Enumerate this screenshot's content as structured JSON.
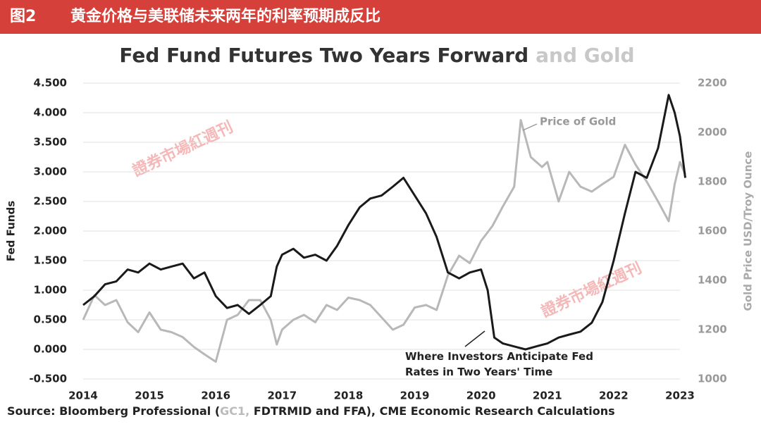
{
  "header": {
    "figure": "图2",
    "title": "黄金价格与美联储未来两年的利率预期成反比"
  },
  "chart_data": {
    "type": "line",
    "title": [
      "Fed Fund Futures Two Years Forward",
      "and Gold"
    ],
    "ylabel": "Fed Funds",
    "y2label": "Gold Price USD/Troy Ounce",
    "xlim": [
      2014,
      2023
    ],
    "xticks": [
      2014,
      2015,
      2016,
      2017,
      2018,
      2019,
      2020,
      2021,
      2022,
      2023
    ],
    "ylim": [
      -0.5,
      4.5
    ],
    "yticks": [
      {
        "value": -0.5,
        "label": "-0.500"
      },
      {
        "value": 0,
        "label": "0.000"
      },
      {
        "value": 0.5,
        "label": "0.500"
      },
      {
        "value": 1,
        "label": "1.000"
      },
      {
        "value": 1.5,
        "label": "1.500"
      },
      {
        "value": 2,
        "label": "2.000"
      },
      {
        "value": 2.5,
        "label": "2.500"
      },
      {
        "value": 3,
        "label": "3.000"
      },
      {
        "value": 3.5,
        "label": "3.500"
      },
      {
        "value": 4,
        "label": "4.000"
      },
      {
        "value": 4.5,
        "label": "4.500"
      }
    ],
    "y2lim": [
      1000,
      2200
    ],
    "y2ticks": [
      1000,
      1200,
      1400,
      1600,
      1800,
      2000,
      2200
    ],
    "grid": true,
    "series": [
      {
        "name": "Where Investors Anticipate Fed Rates in Two Years' Time",
        "color": "#1a1a1a",
        "axis": "y",
        "x": [
          2014.0,
          2014.17,
          2014.33,
          2014.5,
          2014.67,
          2014.83,
          2015.0,
          2015.17,
          2015.33,
          2015.5,
          2015.67,
          2015.83,
          2016.0,
          2016.17,
          2016.33,
          2016.5,
          2016.67,
          2016.83,
          2016.92,
          2017.0,
          2017.17,
          2017.33,
          2017.5,
          2017.67,
          2017.83,
          2018.0,
          2018.17,
          2018.33,
          2018.5,
          2018.67,
          2018.83,
          2019.0,
          2019.17,
          2019.33,
          2019.5,
          2019.67,
          2019.83,
          2020.0,
          2020.1,
          2020.2,
          2020.33,
          2020.5,
          2020.67,
          2020.83,
          2021.0,
          2021.17,
          2021.33,
          2021.5,
          2021.67,
          2021.83,
          2022.0,
          2022.17,
          2022.33,
          2022.5,
          2022.67,
          2022.83,
          2022.92,
          2023.0,
          2023.08
        ],
        "values": [
          0.75,
          0.9,
          1.1,
          1.15,
          1.35,
          1.3,
          1.45,
          1.35,
          1.4,
          1.45,
          1.2,
          1.3,
          0.9,
          0.7,
          0.75,
          0.6,
          0.75,
          0.9,
          1.4,
          1.6,
          1.7,
          1.55,
          1.6,
          1.5,
          1.75,
          2.1,
          2.4,
          2.55,
          2.6,
          2.75,
          2.9,
          2.6,
          2.3,
          1.9,
          1.3,
          1.2,
          1.3,
          1.35,
          1.0,
          0.2,
          0.1,
          0.05,
          0.0,
          0.05,
          0.1,
          0.2,
          0.25,
          0.3,
          0.45,
          0.8,
          1.5,
          2.3,
          3.0,
          2.9,
          3.4,
          4.3,
          4.0,
          3.6,
          2.9
        ]
      },
      {
        "name": "Price of Gold",
        "color": "#b8b8b8",
        "axis": "y2",
        "x": [
          2014.0,
          2014.17,
          2014.33,
          2014.5,
          2014.67,
          2014.83,
          2015.0,
          2015.17,
          2015.33,
          2015.5,
          2015.67,
          2015.83,
          2016.0,
          2016.17,
          2016.33,
          2016.5,
          2016.67,
          2016.83,
          2016.92,
          2017.0,
          2017.17,
          2017.33,
          2017.5,
          2017.67,
          2017.83,
          2018.0,
          2018.17,
          2018.33,
          2018.5,
          2018.67,
          2018.83,
          2019.0,
          2019.17,
          2019.33,
          2019.5,
          2019.67,
          2019.83,
          2020.0,
          2020.17,
          2020.33,
          2020.5,
          2020.6,
          2020.75,
          2020.92,
          2021.0,
          2021.17,
          2021.33,
          2021.5,
          2021.67,
          2021.83,
          2022.0,
          2022.17,
          2022.33,
          2022.5,
          2022.67,
          2022.83,
          2022.92,
          2023.0,
          2023.08
        ],
        "values": [
          1240,
          1340,
          1300,
          1320,
          1230,
          1190,
          1270,
          1200,
          1190,
          1170,
          1130,
          1100,
          1070,
          1240,
          1260,
          1320,
          1320,
          1240,
          1140,
          1200,
          1240,
          1260,
          1230,
          1300,
          1280,
          1330,
          1320,
          1300,
          1250,
          1200,
          1220,
          1290,
          1300,
          1280,
          1420,
          1500,
          1470,
          1560,
          1620,
          1700,
          1780,
          2050,
          1900,
          1860,
          1880,
          1720,
          1840,
          1780,
          1760,
          1790,
          1820,
          1950,
          1870,
          1800,
          1720,
          1640,
          1790,
          1880,
          1830
        ]
      }
    ],
    "source": [
      "Source: Bloomberg Professional (",
      "GC1,",
      " FDTRMID and FFA), CME Economic Research Calculations"
    ],
    "watermark": "證券市場紅週刊"
  }
}
